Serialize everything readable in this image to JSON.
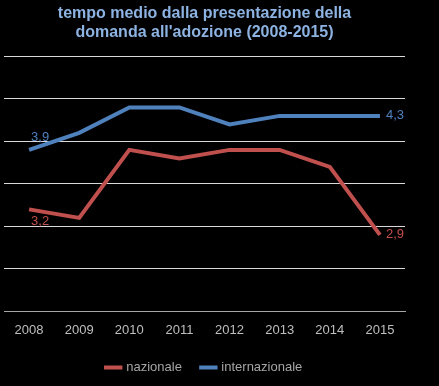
{
  "chart_data": {
    "type": "line",
    "title": [
      "tempo medio dalla presentazione della",
      "domanda all'adozione (2008-2015)"
    ],
    "categories": [
      "2008",
      "2009",
      "2010",
      "2011",
      "2012",
      "2013",
      "2014",
      "2015"
    ],
    "series": [
      {
        "name": "nazionale",
        "color": "#c0504d",
        "values": [
          3.2,
          3.1,
          3.9,
          3.8,
          3.9,
          3.9,
          3.7,
          2.9
        ],
        "value_labels": [
          "3,2",
          null,
          null,
          null,
          null,
          null,
          null,
          "2,9"
        ]
      },
      {
        "name": "internazionale",
        "color": "#4f81bd",
        "values": [
          3.9,
          4.1,
          4.4,
          4.4,
          4.2,
          4.3,
          4.3,
          4.3
        ],
        "value_labels": [
          "3,9",
          null,
          null,
          null,
          null,
          null,
          null,
          "4,3"
        ]
      }
    ],
    "ylim": [
      2,
      5
    ],
    "yticks": [
      2,
      2.5,
      3,
      3.5,
      4,
      4.5,
      5
    ],
    "grid": true,
    "legend": "bottom",
    "data_labels": true,
    "tick_labels": "x"
  }
}
